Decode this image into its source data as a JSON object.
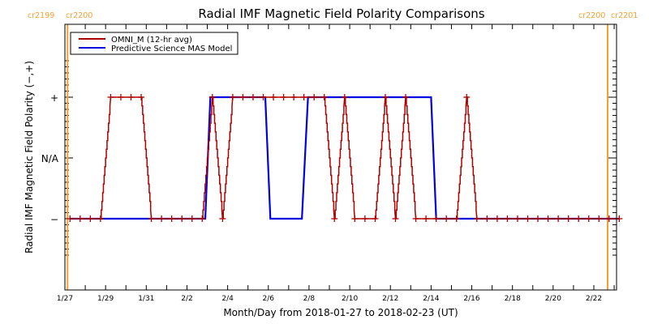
{
  "chart_data": {
    "type": "line",
    "title": "Radial IMF Magnetic Field Polarity Comparisons",
    "xlabel": "Month/Day from 2018-01-27 to 2018-02-23 (UT)",
    "ylabel": "Radial IMF Magnetic Field Polarity (−,+)",
    "xlim_days": [
      0,
      27.1
    ],
    "ylim": [
      -1.65,
      1.65
    ],
    "x_tick_labels": [
      "1/27",
      "1/29",
      "1/31",
      "2/2",
      "2/4",
      "2/6",
      "2/8",
      "2/10",
      "2/12",
      "2/14",
      "2/16",
      "2/18",
      "2/20",
      "2/22"
    ],
    "x_tick_days": [
      0,
      2,
      4,
      6,
      8,
      10,
      12,
      14,
      16,
      18,
      20,
      22,
      24,
      26
    ],
    "y_ticks": [
      {
        "value": 1,
        "label": "+"
      },
      {
        "value": 0,
        "label": "N/A"
      },
      {
        "value": -1,
        "label": "−"
      }
    ],
    "legend": {
      "placement": "top-left",
      "entries": [
        {
          "name": "OMNI_M (12-hr avg)",
          "color": "#b00000"
        },
        {
          "name": "Predictive Science MAS Model",
          "color": "#0000e0"
        }
      ]
    },
    "carrington_markers": [
      {
        "day": 0.05,
        "label_left": "cr2199",
        "label_right": "cr2200",
        "side": "left"
      },
      {
        "day": 26.95,
        "label_left": "cr2200",
        "label_right": "cr2201",
        "side": "right"
      }
    ],
    "marker_color": "#f5a033",
    "series": [
      {
        "name": "OMNI_M (12-hr avg)",
        "color": "#b00000",
        "x_days": [
          0.25,
          0.75,
          1.25,
          1.75,
          2.25,
          2.75,
          3.25,
          3.75,
          4.25,
          4.75,
          5.25,
          5.75,
          6.25,
          6.75,
          7.25,
          7.75,
          8.25,
          8.75,
          9.25,
          9.75,
          10.25,
          10.75,
          11.25,
          11.75,
          12.25,
          12.75,
          13.25,
          13.75,
          14.25,
          14.75,
          15.25,
          15.75,
          16.25,
          16.75,
          17.25,
          17.75,
          18.25,
          18.75,
          19.25,
          19.75,
          20.25,
          20.75,
          21.25,
          21.75,
          22.25,
          22.75,
          23.25,
          23.75,
          24.25,
          24.75,
          25.25,
          25.75,
          26.25,
          26.75,
          27.25
        ],
        "values": [
          -1,
          -1,
          -1,
          -1,
          1,
          1,
          1,
          1,
          -1,
          -1,
          -1,
          -1,
          -1,
          -1,
          1,
          -1,
          1,
          1,
          1,
          1,
          1,
          1,
          1,
          1,
          1,
          1,
          -1,
          1,
          -1,
          -1,
          -1,
          1,
          -1,
          1,
          -1,
          -1,
          -1,
          -1,
          -1,
          1,
          -1,
          -1,
          -1,
          -1,
          -1,
          -1,
          -1,
          -1,
          -1,
          -1,
          -1,
          -1,
          -1,
          -1,
          -1
        ]
      },
      {
        "name": "Predictive Science MAS Model",
        "color": "#0000e0",
        "x_days": [
          0.25,
          6.9,
          7.15,
          9.85,
          10.1,
          11.65,
          11.95,
          18.0,
          18.25,
          27.25
        ],
        "values": [
          -1,
          -1,
          1,
          1,
          -1,
          -1,
          1,
          1,
          -1,
          -1
        ]
      }
    ]
  }
}
